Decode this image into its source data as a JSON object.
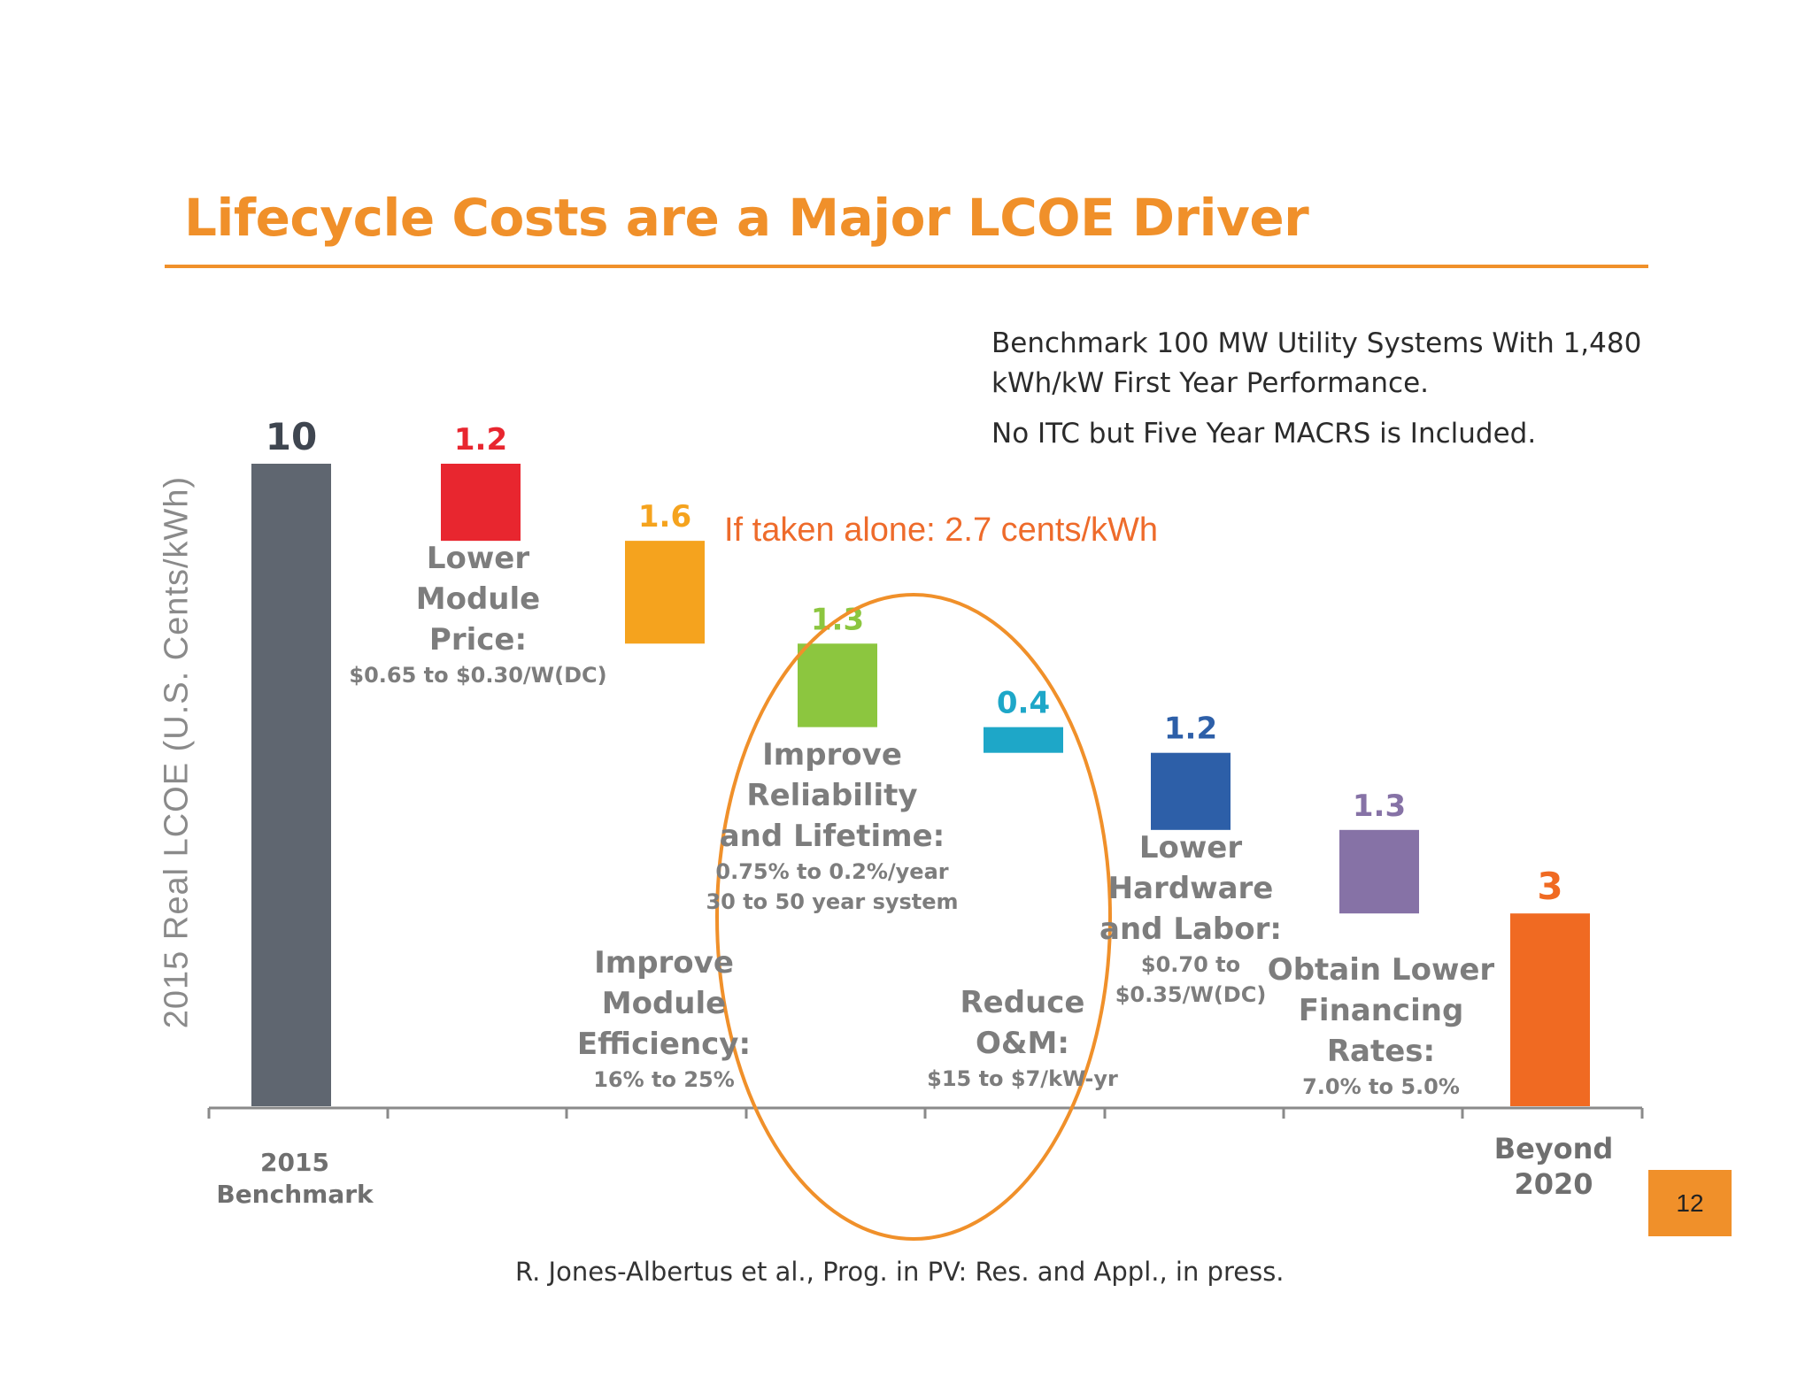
{
  "slide": {
    "title": "Lifecycle Costs are a Major LCOE Driver",
    "note_line1": "Benchmark 100 MW Utility Systems With 1,480",
    "note_line2": "kWh/kW First Year Performance.",
    "note_line3": "No ITC but Five Year MACRS is Included.",
    "callout": "If taken alone: 2.7 cents/kWh",
    "citation": "R. Jones-Albertus et al., Prog. in PV: Res. and Appl., in press.",
    "page_number": "12"
  },
  "chart_data": {
    "type": "bar",
    "subtype": "waterfall",
    "ylabel": "2015 Real LCOE (U.S. Cents/kWh)",
    "ylim": [
      0,
      10
    ],
    "grid": false,
    "x_start_label": [
      "2015",
      "Benchmark"
    ],
    "x_end_label": [
      "Beyond",
      "2020"
    ],
    "bars": [
      {
        "kind": "total",
        "value": 10,
        "label": "10",
        "color": "#5f6670"
      },
      {
        "kind": "decrease",
        "value": 1.2,
        "label": "1.2",
        "color": "#e8262f",
        "title": [
          "Lower",
          "Module",
          "Price:"
        ],
        "detail": [
          "$0.65 to $0.30/W(DC)"
        ]
      },
      {
        "kind": "decrease",
        "value": 1.6,
        "label": "1.6",
        "color": "#f5a31e",
        "title": [
          "Improve",
          "Module",
          "Efficiency:"
        ],
        "detail": [
          "16% to 25%"
        ]
      },
      {
        "kind": "decrease",
        "value": 1.3,
        "label": "1.3",
        "color": "#8cc63f",
        "title": [
          "Improve",
          "Reliability",
          "and Lifetime:"
        ],
        "detail": [
          "0.75% to 0.2%/year",
          "30 to 50 year system"
        ]
      },
      {
        "kind": "decrease",
        "value": 0.4,
        "label": "0.4",
        "color": "#1ea7c8",
        "title": [
          "Reduce",
          "O&M:"
        ],
        "detail": [
          "$15 to $7/kW-yr"
        ]
      },
      {
        "kind": "decrease",
        "value": 1.2,
        "label": "1.2",
        "color": "#2d5fa8",
        "title": [
          "Lower",
          "Hardware",
          "and Labor:"
        ],
        "detail": [
          "$0.70 to",
          "$0.35/W(DC)"
        ]
      },
      {
        "kind": "decrease",
        "value": 1.3,
        "label": "1.3",
        "color": "#8672a6",
        "title": [
          "Obtain Lower",
          "Financing",
          "Rates:"
        ],
        "detail": [
          "7.0% to 5.0%"
        ]
      },
      {
        "kind": "total",
        "value": 3,
        "label": "3",
        "color": "#f06a22"
      }
    ],
    "highlight": {
      "shape": "ellipse",
      "color": "#f0902a",
      "covers": [
        "1.3",
        "0.4"
      ]
    }
  }
}
